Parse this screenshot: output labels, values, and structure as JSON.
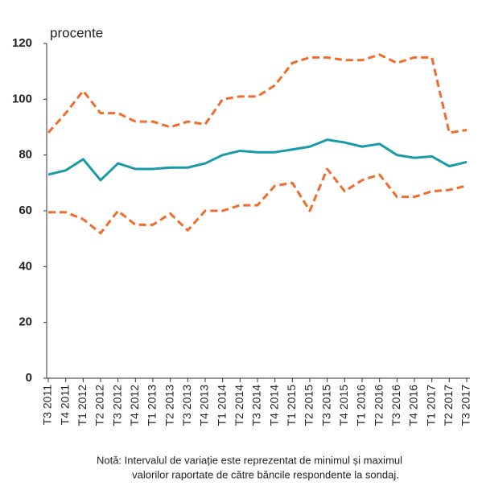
{
  "chart_data": {
    "type": "line",
    "ylabel": "procente",
    "categories": [
      "T3 2011",
      "T4 2011",
      "T1 2012",
      "T2 2012",
      "T3 2012",
      "T4 2012",
      "T1 2013",
      "T2 2013",
      "T3 2013",
      "T4 2013",
      "T1 2014",
      "T2 2014",
      "T3 2014",
      "T4 2014",
      "T1 2015",
      "T2 2015",
      "T3 2015",
      "T4 2015",
      "T1 2016",
      "T2 2016",
      "T3 2016",
      "T4 2016",
      "T1 2017",
      "T2 2017",
      "T3 2017"
    ],
    "series": [
      {
        "color": "#f06b2e",
        "dashed": true,
        "values": [
          88,
          95,
          103,
          95,
          95,
          92,
          92,
          90,
          92,
          91,
          100,
          101,
          101,
          105,
          113,
          115,
          115,
          114,
          114,
          116,
          113,
          115,
          115,
          88,
          89
        ]
      },
      {
        "color": "#1a9aa8",
        "dashed": false,
        "values": [
          73,
          74.5,
          78.5,
          71,
          77,
          75,
          75,
          75.5,
          75.5,
          77,
          80,
          81.5,
          81,
          81,
          82,
          83,
          85.5,
          84.5,
          83,
          84,
          80,
          79,
          79.5,
          76,
          77.5
        ]
      },
      {
        "color": "#f06b2e",
        "dashed": true,
        "values": [
          59.5,
          59.5,
          57,
          52,
          60,
          55,
          55,
          59,
          53,
          60,
          60,
          62,
          62,
          69,
          70,
          60,
          75,
          67,
          71,
          73,
          65,
          65,
          67,
          67.5,
          69
        ]
      }
    ],
    "ylim": [
      0,
      120
    ],
    "yticks": [
      0,
      20,
      40,
      60,
      80,
      100,
      120
    ],
    "note": [
      "Notă: Intervalul de variație este reprezentat de minimul și maximul",
      "valorilor raportate de către băncile respondente  la sondaj."
    ]
  }
}
